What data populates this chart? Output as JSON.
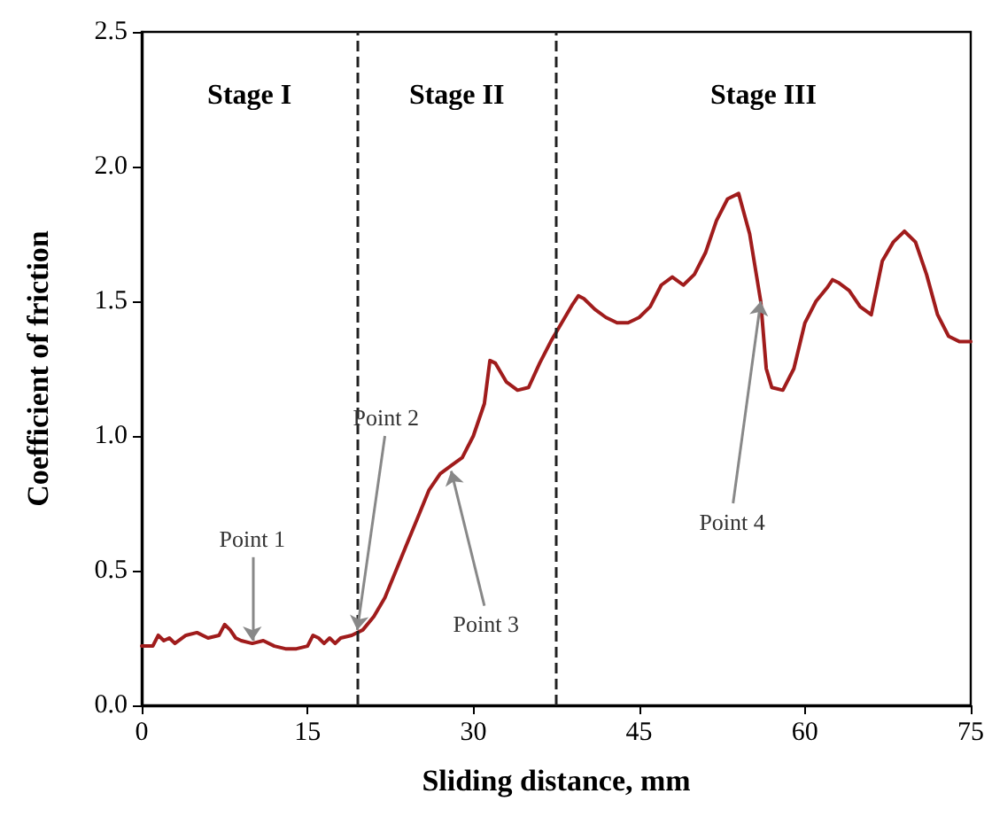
{
  "chart_data": {
    "type": "line",
    "xlabel": "Sliding distance, mm",
    "ylabel": "Coefficient of friction",
    "x": [
      0,
      1,
      1.5,
      2,
      2.5,
      3,
      4,
      5,
      6,
      7,
      7.5,
      8,
      8.5,
      9,
      10,
      11,
      12,
      13,
      14,
      15,
      15.5,
      16,
      16.5,
      17,
      17.5,
      18,
      19,
      20,
      21,
      22,
      23,
      24,
      25,
      26,
      27,
      28,
      29,
      30,
      31,
      31.5,
      32,
      33,
      34,
      35,
      36,
      37,
      38,
      39,
      39.5,
      40,
      41,
      42,
      43,
      44,
      45,
      46,
      47,
      48,
      49,
      50,
      51,
      52,
      53,
      54,
      55,
      56,
      56.5,
      57,
      58,
      59,
      60,
      61,
      62,
      62.5,
      63,
      64,
      65,
      66,
      67,
      68,
      69,
      70,
      71,
      72,
      73,
      74,
      75
    ],
    "series": [
      {
        "color": "#a01c1c",
        "values": [
          0.22,
          0.22,
          0.26,
          0.24,
          0.25,
          0.23,
          0.26,
          0.27,
          0.25,
          0.26,
          0.3,
          0.28,
          0.25,
          0.24,
          0.23,
          0.24,
          0.22,
          0.21,
          0.21,
          0.22,
          0.26,
          0.25,
          0.23,
          0.25,
          0.23,
          0.25,
          0.26,
          0.28,
          0.33,
          0.4,
          0.5,
          0.6,
          0.7,
          0.8,
          0.86,
          0.89,
          0.92,
          1.0,
          1.12,
          1.28,
          1.27,
          1.2,
          1.17,
          1.18,
          1.27,
          1.35,
          1.42,
          1.49,
          1.52,
          1.51,
          1.47,
          1.44,
          1.42,
          1.42,
          1.44,
          1.48,
          1.56,
          1.59,
          1.56,
          1.6,
          1.68,
          1.8,
          1.88,
          1.9,
          1.75,
          1.5,
          1.25,
          1.18,
          1.17,
          1.25,
          1.42,
          1.5,
          1.55,
          1.58,
          1.57,
          1.54,
          1.48,
          1.45,
          1.65,
          1.72,
          1.76,
          1.72,
          1.6,
          1.45,
          1.37,
          1.35,
          1.35
        ]
      }
    ],
    "xlim": [
      0,
      75
    ],
    "xticks": [
      0,
      15,
      30,
      45,
      60,
      75
    ],
    "ylim": [
      0,
      2.5
    ],
    "yticks": [
      {
        "value": 0,
        "label": "0.0"
      },
      {
        "value": 0.5,
        "label": "0.5"
      },
      {
        "value": 1,
        "label": "1.0"
      },
      {
        "value": 1.5,
        "label": "1.5"
      },
      {
        "value": 2,
        "label": "2.0"
      },
      {
        "value": 2.5,
        "label": "2.5"
      }
    ],
    "ref_lines": [
      {
        "axis": "x",
        "value": 19.5,
        "line_style": "dashed",
        "color": "#222222"
      },
      {
        "axis": "x",
        "value": 37.5,
        "line_style": "dashed",
        "color": "#222222"
      }
    ],
    "annotations": [
      "Stage I",
      "Stage II",
      "Stage III",
      {
        "text": "Point 1",
        "x": 10,
        "y": 0.24
      },
      {
        "text": "Point 2",
        "x": 19.5,
        "y": 0.28
      },
      {
        "text": "Point 3",
        "x": 28,
        "y": 0.87
      },
      {
        "text": "Point 4",
        "x": 56,
        "y": 1.5
      }
    ],
    "grid": false,
    "marker": "none",
    "line_style": "solid"
  }
}
